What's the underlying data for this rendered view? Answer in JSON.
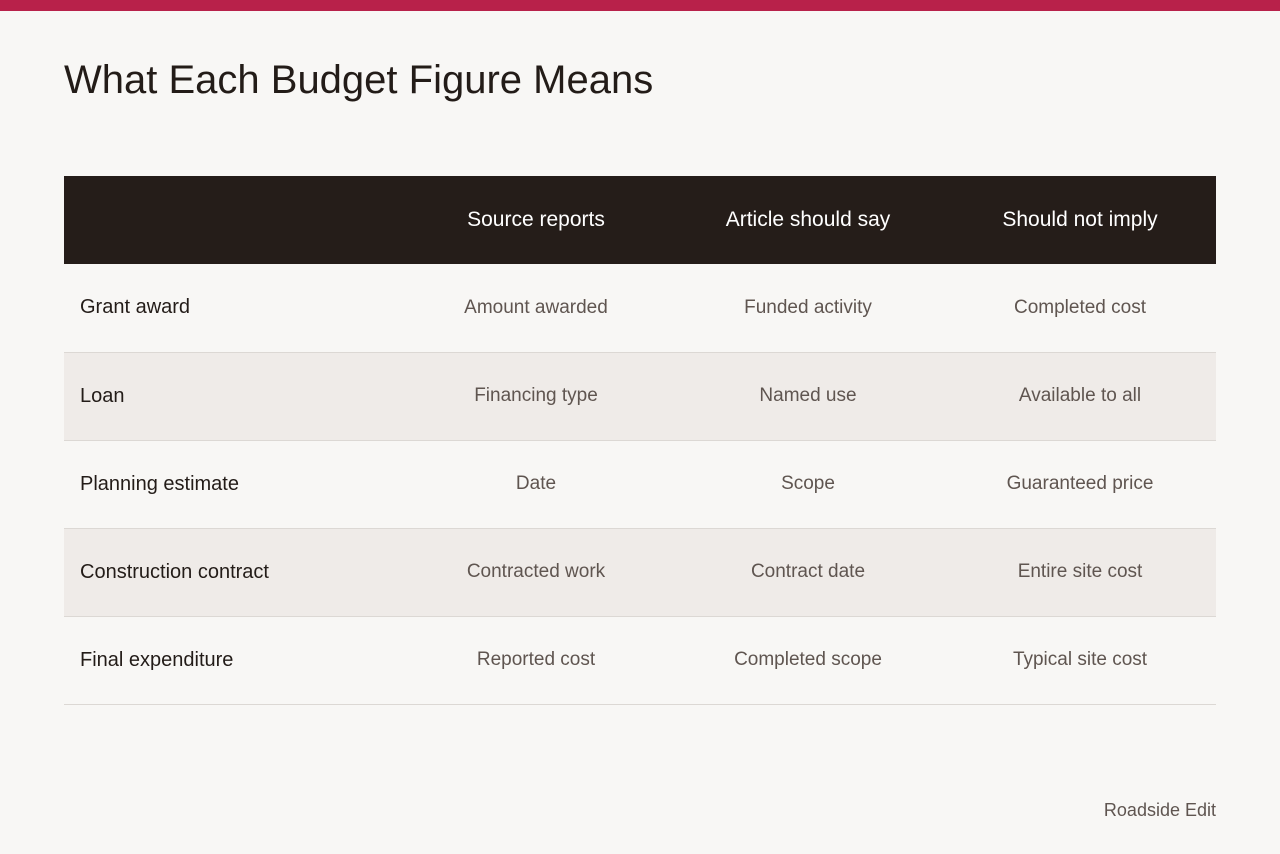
{
  "accent_color": "#b8214a",
  "title": "What Each Budget Figure Means",
  "table": {
    "headers": [
      "",
      "Source reports",
      "Article should say",
      "Should not imply"
    ],
    "rows": [
      [
        "Grant award",
        "Amount awarded",
        "Funded activity",
        "Completed cost"
      ],
      [
        "Loan",
        "Financing type",
        "Named use",
        "Available to all"
      ],
      [
        "Planning estimate",
        "Date",
        "Scope",
        "Guaranteed price"
      ],
      [
        "Construction contract",
        "Contracted work",
        "Contract date",
        "Entire site cost"
      ],
      [
        "Final expenditure",
        "Reported cost",
        "Completed scope",
        "Typical site cost"
      ]
    ]
  },
  "footer": {
    "credit": "Roadside Edit"
  }
}
